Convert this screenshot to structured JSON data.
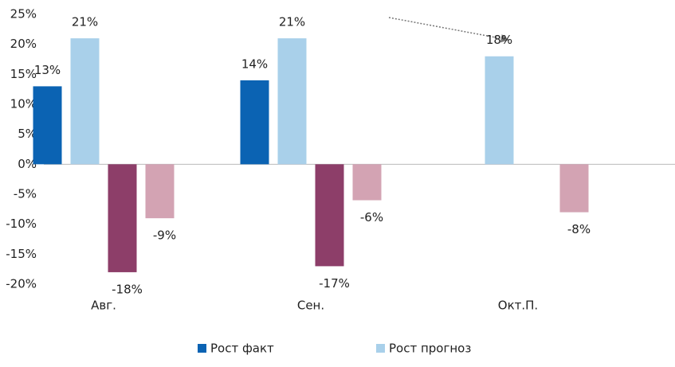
{
  "chart_data": {
    "type": "bar",
    "categories": [
      "Авг.",
      "Сен.",
      "Окт.П."
    ],
    "series": [
      {
        "name": "Рост факт",
        "color": "#0b63b3",
        "values": [
          13,
          14,
          null
        ],
        "value_labels": [
          "13%",
          "14%",
          null
        ]
      },
      {
        "name": "Рост прогноз",
        "color": "#a9d0ea",
        "values": [
          21,
          21,
          18
        ],
        "value_labels": [
          "21%",
          "21%",
          "18%"
        ]
      },
      {
        "color": "#8d3e69",
        "values": [
          -18,
          -17,
          null
        ],
        "value_labels": [
          "-18%",
          "-17%",
          null
        ]
      },
      {
        "color": "#d3a3b3",
        "values": [
          -9,
          -6,
          -8
        ],
        "value_labels": [
          "-9%",
          "-6%",
          "-8%"
        ]
      }
    ],
    "ylim": [
      -20,
      25
    ],
    "yticks": [
      {
        "value": -20,
        "label": "-20%"
      },
      {
        "value": -15,
        "label": "-15%"
      },
      {
        "value": -10,
        "label": "-10%"
      },
      {
        "value": -5,
        "label": "-5%"
      },
      {
        "value": 0,
        "label": "0%"
      },
      {
        "value": 5,
        "label": "5%"
      },
      {
        "value": 10,
        "label": "10%"
      },
      {
        "value": 15,
        "label": "15%"
      },
      {
        "value": 20,
        "label": "20%"
      },
      {
        "value": 25,
        "label": "25%"
      }
    ],
    "grid": false,
    "legend": "bottom"
  }
}
